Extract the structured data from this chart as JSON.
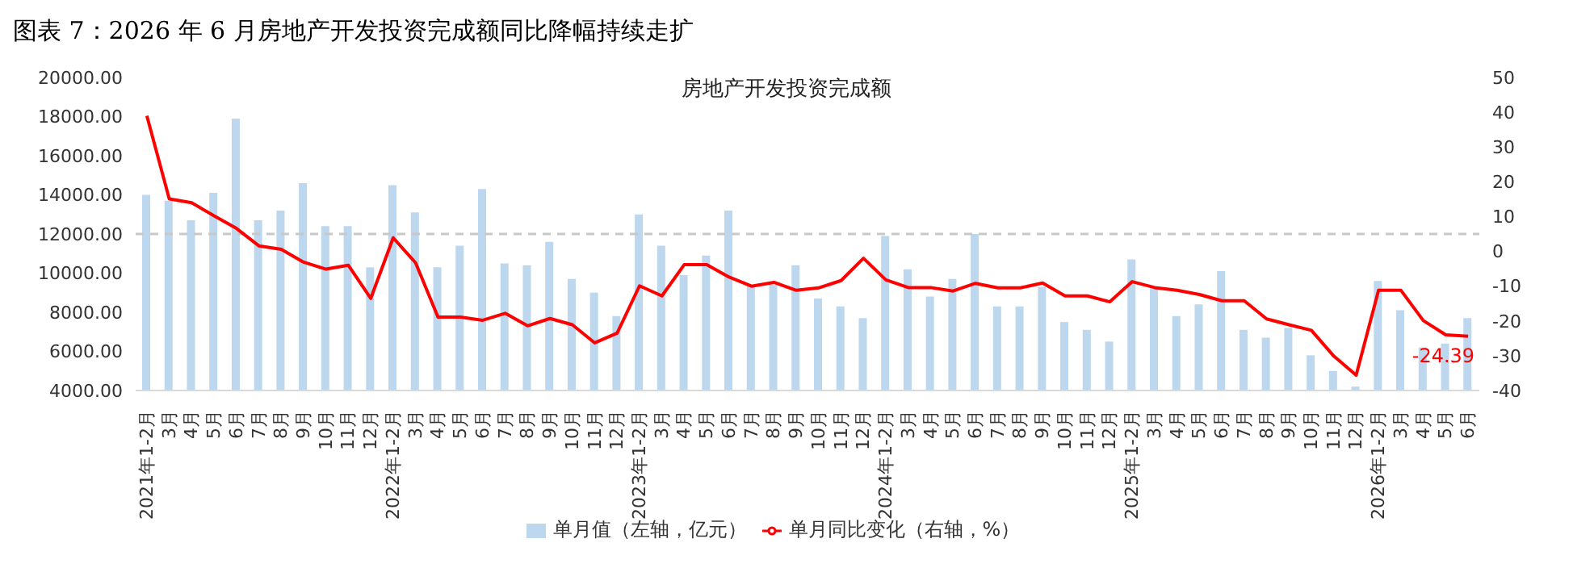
{
  "chart_data": {
    "type": "bar",
    "title": "图表 7：2026 年 6 月房地产开发投资完成额同比降幅持续走扩",
    "subtitle": "房地产开发投资完成额",
    "categories": [
      "2021年1-2月",
      "3月",
      "4月",
      "5月",
      "6月",
      "7月",
      "8月",
      "9月",
      "10月",
      "11月",
      "12月",
      "2022年1-2月",
      "3月",
      "4月",
      "5月",
      "6月",
      "7月",
      "8月",
      "9月",
      "10月",
      "11月",
      "12月",
      "2023年1-2月",
      "3月",
      "4月",
      "5月",
      "6月",
      "7月",
      "8月",
      "9月",
      "10月",
      "11月",
      "12月",
      "2024年1-2月",
      "3月",
      "4月",
      "5月",
      "6月",
      "7月",
      "8月",
      "9月",
      "10月",
      "11月",
      "12月",
      "2025年1-2月",
      "3月",
      "4月",
      "5月",
      "6月",
      "7月",
      "8月",
      "9月",
      "10月",
      "11月",
      "12月",
      "2026年1-2月",
      "3月",
      "4月",
      "5月",
      "6月"
    ],
    "series": [
      {
        "name": "单月值（左轴，亿元）",
        "color": "#bdd7ee",
        "values": [
          14000,
          13700,
          12700,
          14100,
          17900,
          12700,
          13200,
          14600,
          12400,
          12400,
          10300,
          14500,
          13100,
          10300,
          11400,
          14300,
          10500,
          10400,
          11600,
          9700,
          9000,
          7800,
          13000,
          11400,
          9900,
          10900,
          13200,
          9400,
          9400,
          10400,
          8700,
          8300,
          7700,
          11900,
          10200,
          8800,
          9700,
          12000,
          8300,
          8300,
          9300,
          7500,
          7100,
          6500,
          10700,
          9200,
          7800,
          8400,
          10100,
          7100,
          6700,
          7200,
          5800,
          5000,
          4200,
          9600,
          8100,
          6200,
          6400,
          7700
        ]
      },
      {
        "name": "单月同比变化（右轴，%）",
        "type": "line",
        "axis": "y2",
        "color": "#ff0000",
        "values": [
          39.0,
          15.1,
          14.0,
          10.2,
          6.6,
          1.6,
          0.6,
          -3.1,
          -5.1,
          -4.0,
          -13.5,
          3.9,
          -3.3,
          -18.9,
          -18.9,
          -19.8,
          -17.8,
          -21.4,
          -19.3,
          -21.1,
          -26.3,
          -23.5,
          -9.9,
          -12.8,
          -3.8,
          -3.8,
          -7.4,
          -10.0,
          -8.9,
          -11.2,
          -10.5,
          -8.4,
          -2.0,
          -8.2,
          -10.4,
          -10.4,
          -11.4,
          -9.2,
          -10.5,
          -10.5,
          -9.1,
          -12.8,
          -12.8,
          -14.5,
          -8.7,
          -10.4,
          -11.2,
          -12.4,
          -14.2,
          -14.2,
          -19.4,
          -21.1,
          -22.7,
          -30.1,
          -35.6,
          -11.2,
          -11.2,
          -19.9,
          -24.0,
          -24.39
        ],
        "value_labels": [
          null,
          null,
          null,
          null,
          null,
          null,
          null,
          null,
          null,
          null,
          null,
          null,
          null,
          null,
          null,
          null,
          null,
          null,
          null,
          null,
          null,
          null,
          null,
          null,
          null,
          null,
          null,
          null,
          null,
          null,
          null,
          null,
          null,
          null,
          null,
          null,
          null,
          null,
          null,
          null,
          null,
          null,
          null,
          null,
          null,
          null,
          null,
          null,
          null,
          null,
          null,
          null,
          null,
          null,
          null,
          null,
          null,
          null,
          null,
          "-24.39"
        ]
      }
    ],
    "ylim": [
      4000,
      20000
    ],
    "yticks": [
      {
        "value": 4000,
        "label": "4000.00"
      },
      {
        "value": 6000,
        "label": "6000.00"
      },
      {
        "value": 8000,
        "label": "8000.00"
      },
      {
        "value": 10000,
        "label": "10000.00"
      },
      {
        "value": 12000,
        "label": "12000.00"
      },
      {
        "value": 14000,
        "label": "14000.00"
      },
      {
        "value": 16000,
        "label": "16000.00"
      },
      {
        "value": 18000,
        "label": "18000.00"
      },
      {
        "value": 20000,
        "label": "20000.00"
      }
    ],
    "y2lim": [
      -40,
      50
    ],
    "y2ticks": [
      -40,
      -30,
      -20,
      -10,
      0,
      10,
      20,
      30,
      40,
      50
    ],
    "ref_lines": [
      {
        "axis": "y",
        "value": 12000,
        "color": "#c8c8c8",
        "line_style": "dashed"
      }
    ],
    "grid": false,
    "legend": "bottom",
    "marker": "none",
    "line_style": "solid"
  }
}
